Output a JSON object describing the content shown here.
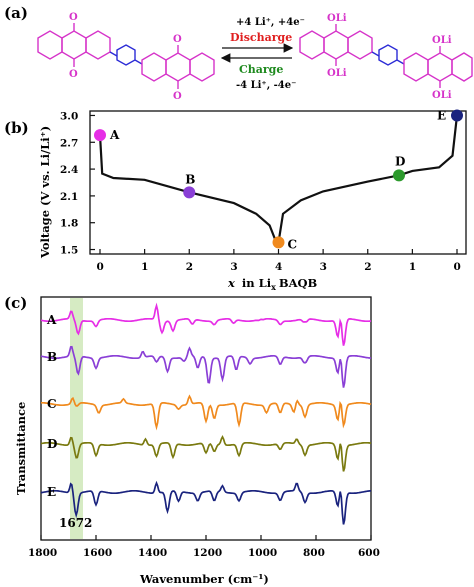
{
  "panel_a": {
    "label": "(a)",
    "forward_label": "+4 Li⁺, +4e⁻",
    "forward_name": "Discharge",
    "reverse_name": "Charge",
    "reverse_label": "-4 Li⁺, -4e⁻",
    "left_groups": [
      "O",
      "O",
      "O",
      "O"
    ],
    "right_groups": [
      "OLi",
      "OLi",
      "OLi",
      "OLi"
    ],
    "colors": {
      "anthraquinone": "#d633c9",
      "biphenyl": "#2b2bd6",
      "discharge": "#e02020",
      "charge": "#1e8a1e"
    }
  },
  "panel_b": {
    "label": "(b)",
    "xlabel_prefix": "x",
    "xlabel_rest": "in Li",
    "xlabel_sub": "x",
    "xlabel_suffix": "BAQB",
    "ylabel": "Voltage (V vs. Li/Li⁺)",
    "points": [
      {
        "name": "A",
        "color": "#e62ee6"
      },
      {
        "name": "B",
        "color": "#8a3fd6"
      },
      {
        "name": "C",
        "color": "#f08a1e"
      },
      {
        "name": "D",
        "color": "#2d9a2d"
      },
      {
        "name": "E",
        "color": "#1a237e"
      }
    ]
  },
  "panel_c": {
    "label": "(c)",
    "xlabel": "Wavenumber (cm⁻¹)",
    "ylabel": "Transmittance",
    "annotation": "1672",
    "highlight_color": "#cfe8b8",
    "spectra": [
      {
        "name": "A",
        "color": "#e62ee6"
      },
      {
        "name": "B",
        "color": "#8a3fd6"
      },
      {
        "name": "C",
        "color": "#f08a1e"
      },
      {
        "name": "D",
        "color": "#7a7a10"
      },
      {
        "name": "E",
        "color": "#1a237e"
      }
    ]
  },
  "chart_data": [
    {
      "type": "line",
      "ylabel": "Voltage (V vs. Li/Li⁺)",
      "xlabel": "x in LixBAQB",
      "x_tick_labels": [
        "0",
        "1",
        "2",
        "3",
        "4",
        "3",
        "2",
        "1",
        "0"
      ],
      "y_ticks": [
        1.5,
        1.8,
        2.1,
        2.4,
        2.7,
        3.0
      ],
      "ylim": [
        1.45,
        3.05
      ],
      "series": [
        {
          "x_progress": [
            0,
            0.05,
            0.3,
            1,
            2,
            3,
            3.5,
            3.8,
            3.95,
            4,
            4.1,
            4.5,
            5,
            6,
            6.7,
            7,
            7.6,
            7.9,
            8
          ],
          "voltage": [
            2.78,
            2.35,
            2.3,
            2.28,
            2.14,
            2.02,
            1.9,
            1.77,
            1.58,
            1.58,
            1.9,
            2.05,
            2.15,
            2.26,
            2.33,
            2.38,
            2.42,
            2.55,
            3.0
          ]
        }
      ],
      "markers": [
        {
          "name": "A",
          "x_progress": 0,
          "voltage": 2.78
        },
        {
          "name": "B",
          "x_progress": 2,
          "voltage": 2.14
        },
        {
          "name": "C",
          "x_progress": 4,
          "voltage": 1.58
        },
        {
          "name": "D",
          "x_progress": 6.7,
          "voltage": 2.33
        },
        {
          "name": "E",
          "x_progress": 8,
          "voltage": 3.0
        }
      ]
    },
    {
      "type": "line",
      "xlabel": "Wavenumber (cm⁻¹)",
      "ylabel": "Transmittance",
      "x_ticks": [
        1800,
        1600,
        1400,
        1200,
        1000,
        800,
        600
      ],
      "xlim": [
        1800,
        600
      ],
      "annotations": [
        {
          "text": "1672",
          "x": 1672
        }
      ]
    }
  ]
}
